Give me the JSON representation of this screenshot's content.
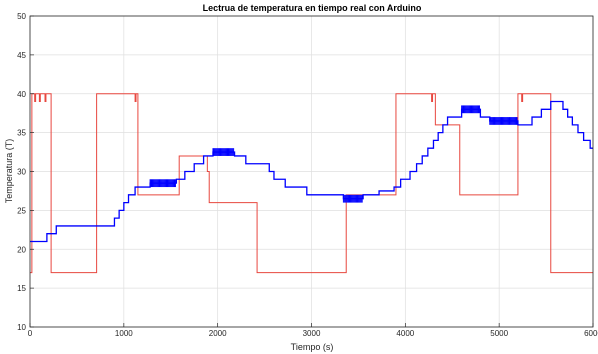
{
  "chart_data": {
    "type": "line",
    "title": "Lectrua de temperatura en tiempo real con Arduino",
    "xlabel": "Tiempo (s)",
    "ylabel": "Temperatura (T)",
    "xlim": [
      0,
      6000
    ],
    "ylim": [
      10,
      50
    ],
    "xticks": [
      0,
      1000,
      2000,
      3000,
      4000,
      5000,
      6000
    ],
    "yticks": [
      10,
      15,
      20,
      25,
      30,
      35,
      40,
      45,
      50
    ],
    "grid": true,
    "legend": "none",
    "series": [
      {
        "color": "#e8473f",
        "style": "step",
        "points": [
          [
            0,
            17
          ],
          [
            20,
            17
          ],
          [
            20,
            40
          ],
          [
            50,
            40
          ],
          [
            50,
            39
          ],
          [
            60,
            39
          ],
          [
            60,
            40
          ],
          [
            100,
            40
          ],
          [
            100,
            39
          ],
          [
            110,
            39
          ],
          [
            110,
            40
          ],
          [
            160,
            40
          ],
          [
            160,
            39
          ],
          [
            170,
            39
          ],
          [
            170,
            40
          ],
          [
            225,
            40
          ],
          [
            225,
            17
          ],
          [
            710,
            17
          ],
          [
            710,
            40
          ],
          [
            1120,
            40
          ],
          [
            1120,
            39
          ],
          [
            1130,
            39
          ],
          [
            1130,
            40
          ],
          [
            1150,
            40
          ],
          [
            1150,
            27
          ],
          [
            1590,
            27
          ],
          [
            1590,
            32
          ],
          [
            1890,
            32
          ],
          [
            1890,
            30
          ],
          [
            1910,
            30
          ],
          [
            1910,
            26
          ],
          [
            2420,
            26
          ],
          [
            2420,
            17
          ],
          [
            3370,
            17
          ],
          [
            3370,
            27
          ],
          [
            3900,
            27
          ],
          [
            3900,
            40
          ],
          [
            4280,
            40
          ],
          [
            4280,
            39
          ],
          [
            4290,
            39
          ],
          [
            4290,
            40
          ],
          [
            4320,
            40
          ],
          [
            4320,
            36
          ],
          [
            4580,
            36
          ],
          [
            4580,
            27
          ],
          [
            5200,
            27
          ],
          [
            5200,
            40
          ],
          [
            5240,
            40
          ],
          [
            5240,
            39
          ],
          [
            5250,
            39
          ],
          [
            5250,
            40
          ],
          [
            5550,
            40
          ],
          [
            5550,
            17
          ],
          [
            6000,
            17
          ]
        ]
      },
      {
        "color": "#0000ff",
        "style": "step",
        "points": [
          [
            0,
            21
          ],
          [
            180,
            21
          ],
          [
            180,
            22
          ],
          [
            280,
            22
          ],
          [
            280,
            23
          ],
          [
            900,
            23
          ],
          [
            900,
            24
          ],
          [
            950,
            24
          ],
          [
            950,
            25
          ],
          [
            1000,
            25
          ],
          [
            1000,
            26
          ],
          [
            1050,
            26
          ],
          [
            1050,
            27
          ],
          [
            1120,
            27
          ],
          [
            1120,
            28
          ],
          [
            1280,
            28
          ],
          [
            1280,
            28.5
          ],
          [
            1560,
            28.5
          ],
          [
            1560,
            29
          ],
          [
            1650,
            29
          ],
          [
            1650,
            30
          ],
          [
            1750,
            30
          ],
          [
            1750,
            31
          ],
          [
            1850,
            31
          ],
          [
            1850,
            32
          ],
          [
            1950,
            32
          ],
          [
            1950,
            32.5
          ],
          [
            2180,
            32.5
          ],
          [
            2180,
            32
          ],
          [
            2300,
            32
          ],
          [
            2300,
            31
          ],
          [
            2550,
            31
          ],
          [
            2550,
            30
          ],
          [
            2600,
            30
          ],
          [
            2600,
            29
          ],
          [
            2720,
            29
          ],
          [
            2720,
            28
          ],
          [
            2950,
            28
          ],
          [
            2950,
            27
          ],
          [
            3340,
            27
          ],
          [
            3340,
            26.5
          ],
          [
            3550,
            26.5
          ],
          [
            3550,
            27
          ],
          [
            3720,
            27
          ],
          [
            3720,
            27.5
          ],
          [
            3880,
            27.5
          ],
          [
            3880,
            28
          ],
          [
            3950,
            28
          ],
          [
            3950,
            29
          ],
          [
            4050,
            29
          ],
          [
            4050,
            30
          ],
          [
            4120,
            30
          ],
          [
            4120,
            31
          ],
          [
            4180,
            31
          ],
          [
            4180,
            32
          ],
          [
            4240,
            32
          ],
          [
            4240,
            33
          ],
          [
            4300,
            33
          ],
          [
            4300,
            34
          ],
          [
            4350,
            34
          ],
          [
            4350,
            35
          ],
          [
            4400,
            35
          ],
          [
            4400,
            36
          ],
          [
            4450,
            36
          ],
          [
            4450,
            37
          ],
          [
            4600,
            37
          ],
          [
            4600,
            38
          ],
          [
            4800,
            38
          ],
          [
            4800,
            37
          ],
          [
            4900,
            37
          ],
          [
            4900,
            36.5
          ],
          [
            5200,
            36.5
          ],
          [
            5200,
            36
          ],
          [
            5350,
            36
          ],
          [
            5350,
            37
          ],
          [
            5450,
            37
          ],
          [
            5450,
            38
          ],
          [
            5550,
            38
          ],
          [
            5550,
            39
          ],
          [
            5680,
            39
          ],
          [
            5680,
            38
          ],
          [
            5730,
            38
          ],
          [
            5730,
            37
          ],
          [
            5780,
            37
          ],
          [
            5780,
            36
          ],
          [
            5840,
            36
          ],
          [
            5840,
            35
          ],
          [
            5900,
            35
          ],
          [
            5900,
            34
          ],
          [
            5970,
            34
          ],
          [
            5970,
            33
          ],
          [
            6000,
            33
          ]
        ]
      }
    ]
  }
}
